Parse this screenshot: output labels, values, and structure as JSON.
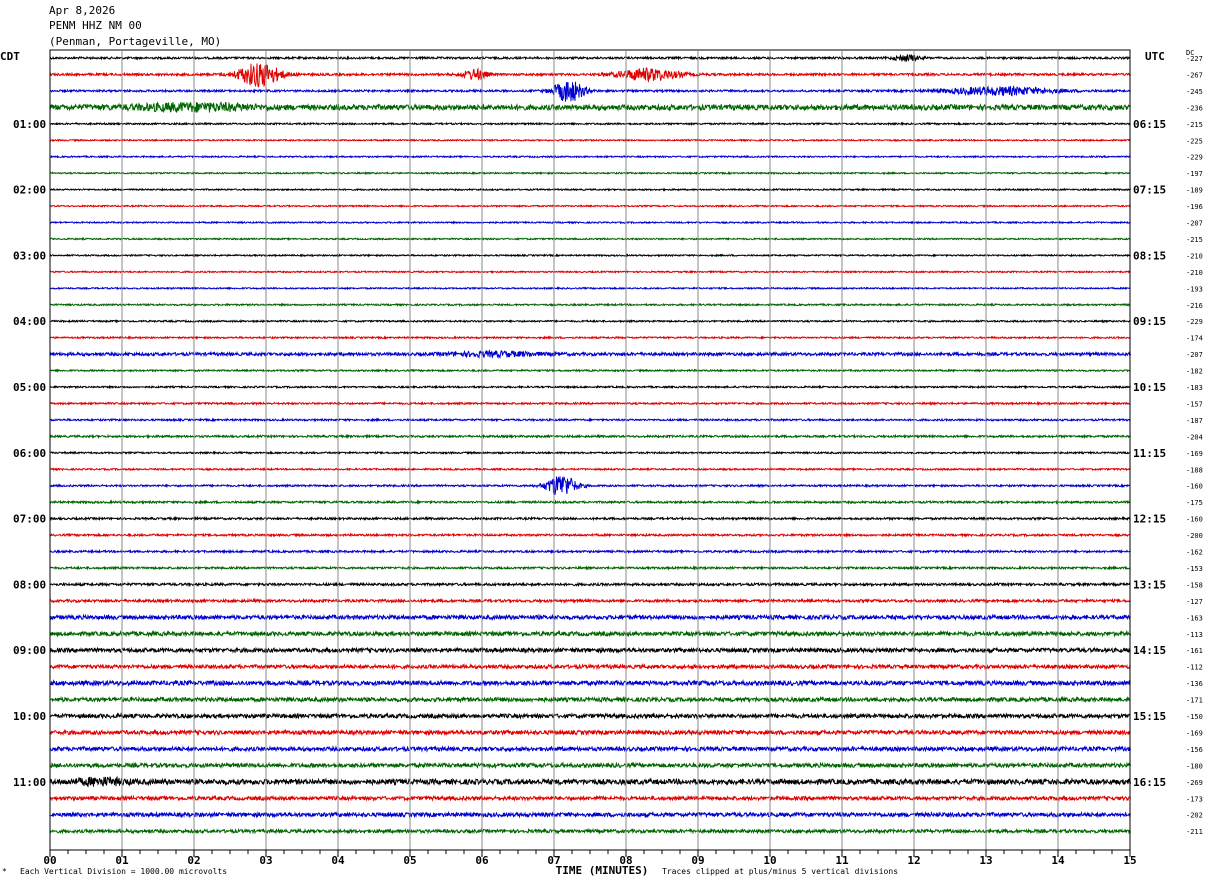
{
  "header": {
    "date": "Apr 8,2026",
    "station": "PENM HHZ NM 00",
    "location": "(Penman, Portageville, MO)"
  },
  "labels": {
    "left_tz": "CDT",
    "right_tz": "UTC",
    "dc": "DC"
  },
  "footer": {
    "scale_note": "Each Vertical Division = 1000.00 microvolts",
    "clip_note": "Traces clipped at plus/minus 5 vertical divisions",
    "corner_mark": "*"
  },
  "colors": {
    "trace_cycle": [
      "#000000",
      "#e00000",
      "#0000d0",
      "#006400"
    ],
    "grid": "#888888"
  },
  "chart_data": {
    "type": "line",
    "title": "",
    "xlabel": "TIME (MINUTES)",
    "xlim": [
      0,
      15
    ],
    "x_ticks": [
      "00",
      "01",
      "02",
      "03",
      "04",
      "05",
      "06",
      "07",
      "08",
      "09",
      "10",
      "11",
      "12",
      "13",
      "14",
      "15"
    ],
    "rows_per_hour": 4,
    "left_hour_labels": [
      "01:00",
      "02:00",
      "03:00",
      "04:00",
      "05:00",
      "06:00",
      "07:00",
      "08:00",
      "09:00",
      "10:00",
      "11:00"
    ],
    "right_hour_labels": [
      "06:15",
      "07:15",
      "08:15",
      "09:15",
      "10:15",
      "11:15",
      "12:15",
      "13:15",
      "14:15",
      "15:15",
      "16:15"
    ],
    "dc_offsets": [
      -227,
      -267,
      -245,
      -236,
      -215,
      -225,
      -229,
      -197,
      -189,
      -196,
      -207,
      -215,
      -210,
      -210,
      -193,
      -216,
      -229,
      -174,
      -207,
      -182,
      -183,
      -157,
      -187,
      -204,
      -169,
      -188,
      -160,
      -175,
      -160,
      -200,
      -162,
      -153,
      -158,
      -127,
      -163,
      -113,
      -161,
      -112,
      -136,
      -171,
      -150,
      -169,
      -156,
      -180,
      -269,
      -173,
      -202,
      -211
    ],
    "base_noise": [
      1.0,
      1.1,
      1.0,
      2.6,
      0.8,
      0.7,
      0.7,
      0.7,
      0.7,
      0.7,
      0.7,
      0.7,
      0.7,
      0.7,
      0.7,
      0.8,
      0.8,
      0.8,
      1.5,
      0.8,
      0.8,
      0.9,
      0.9,
      1.0,
      0.8,
      0.8,
      0.9,
      1.0,
      1.0,
      1.0,
      1.0,
      1.0,
      1.2,
      1.3,
      2.0,
      2.0,
      2.0,
      1.8,
      2.2,
      2.0,
      2.0,
      2.0,
      2.0,
      2.0,
      2.6,
      1.8,
      2.0,
      1.6
    ],
    "events": [
      {
        "row": 0,
        "minute": 11.9,
        "duration": 0.4,
        "amplitude": 3
      },
      {
        "row": 1,
        "minute": 2.9,
        "duration": 0.7,
        "amplitude": 12
      },
      {
        "row": 1,
        "minute": 5.9,
        "duration": 0.4,
        "amplitude": 5
      },
      {
        "row": 1,
        "minute": 8.3,
        "duration": 1.0,
        "amplitude": 6
      },
      {
        "row": 2,
        "minute": 7.2,
        "duration": 0.5,
        "amplitude": 11
      },
      {
        "row": 2,
        "minute": 13.2,
        "duration": 1.8,
        "amplitude": 4
      },
      {
        "row": 3,
        "minute": 2.0,
        "duration": 2.0,
        "amplitude": 3
      },
      {
        "row": 18,
        "minute": 6.2,
        "duration": 1.5,
        "amplitude": 2
      },
      {
        "row": 26,
        "minute": 7.1,
        "duration": 0.5,
        "amplitude": 11
      },
      {
        "row": 44,
        "minute": 0.7,
        "duration": 0.8,
        "amplitude": 3
      }
    ]
  }
}
